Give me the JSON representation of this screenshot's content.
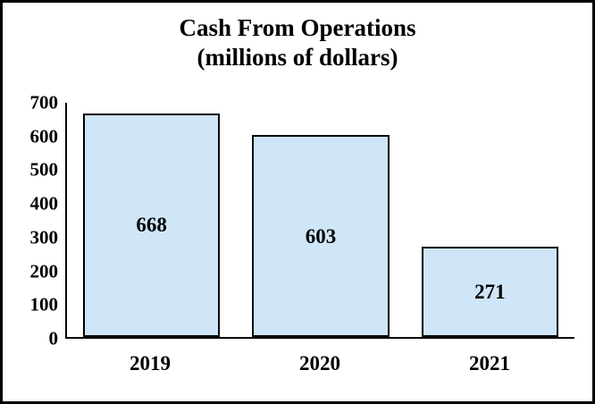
{
  "chart_data": {
    "type": "bar",
    "title": "Cash From Operations",
    "subtitle": "(millions of dollars)",
    "categories": [
      "2019",
      "2020",
      "2021"
    ],
    "values": [
      668,
      603,
      271
    ],
    "ylim": [
      0,
      700
    ],
    "yticks": [
      0,
      100,
      200,
      300,
      400,
      500,
      600,
      700
    ],
    "grid": false,
    "legend": false,
    "bar_fill": "#cfe6f8",
    "bar_border": "#000000",
    "frame_border": "#000000"
  }
}
